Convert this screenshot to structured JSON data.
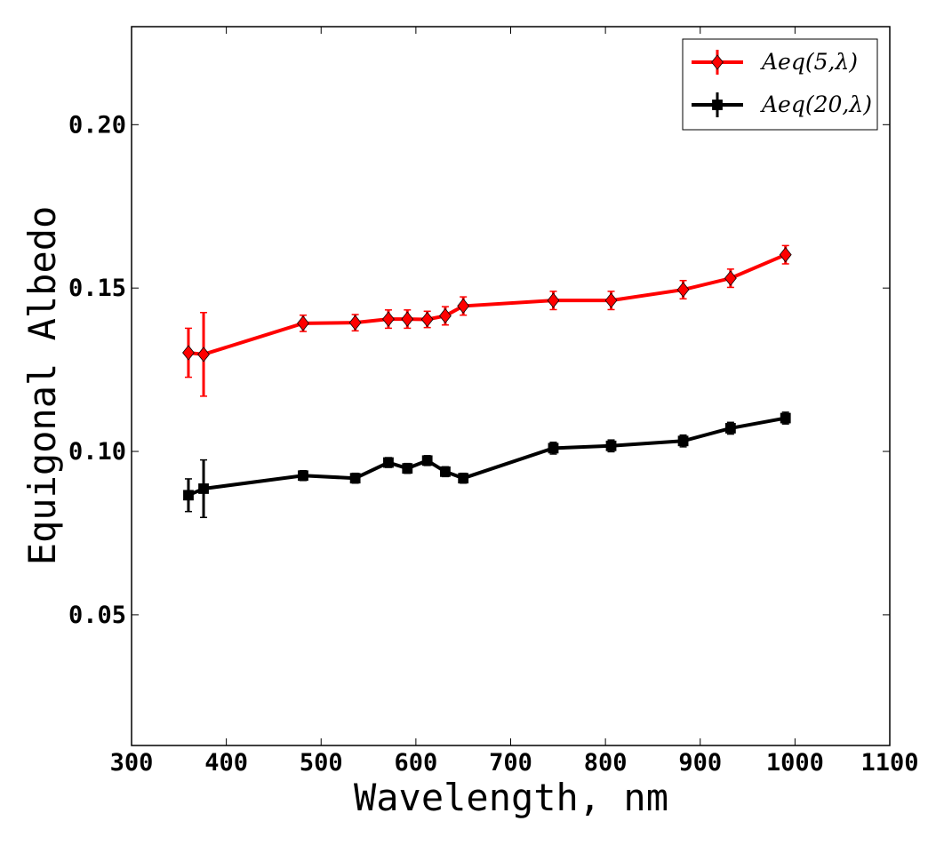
{
  "chart_data": {
    "type": "line",
    "title": "",
    "xlabel": "Wavelength, nm",
    "ylabel": "Equigonal Albedo",
    "xlim": [
      300,
      1100
    ],
    "ylim": [
      0.01,
      0.23
    ],
    "xticks": [
      300,
      400,
      500,
      600,
      700,
      800,
      900,
      1000,
      1100
    ],
    "xtick_labels": [
      "300",
      "400",
      "500",
      "600",
      "700",
      "800",
      "900",
      "1000",
      "1100"
    ],
    "yticks": [
      0.05,
      0.1,
      0.15,
      0.2
    ],
    "ytick_labels": [
      "0.05",
      "0.10",
      "0.15",
      "0.20"
    ],
    "grid": false,
    "legend_position": "top-right",
    "series": [
      {
        "name": "Aeq(5,λ)",
        "color": "#ff0000",
        "marker": "diamond",
        "x": [
          360,
          376,
          481,
          536,
          571,
          591,
          612,
          631,
          650,
          745,
          806,
          882,
          932,
          990
        ],
        "y": [
          0.1302,
          0.1297,
          0.1392,
          0.1394,
          0.1405,
          0.1405,
          0.1404,
          0.1415,
          0.1445,
          0.1462,
          0.1462,
          0.1495,
          0.153,
          0.1602
        ],
        "yerr": [
          0.0075,
          0.0128,
          0.0025,
          0.0025,
          0.0028,
          0.0028,
          0.0025,
          0.0028,
          0.0028,
          0.0028,
          0.0028,
          0.0028,
          0.0028,
          0.0028
        ]
      },
      {
        "name": "Aeq(20,λ)",
        "color": "#000000",
        "marker": "square",
        "x": [
          360,
          376,
          481,
          536,
          571,
          591,
          612,
          631,
          650,
          745,
          806,
          882,
          932,
          990
        ],
        "y": [
          0.0866,
          0.0886,
          0.0926,
          0.0918,
          0.0966,
          0.0948,
          0.0972,
          0.0938,
          0.0918,
          0.101,
          0.1017,
          0.1032,
          0.1071,
          0.1102
        ],
        "yerr": [
          0.005,
          0.0088,
          0.0015,
          0.0015,
          0.0015,
          0.0015,
          0.0015,
          0.0015,
          0.0015,
          0.0018,
          0.0018,
          0.0018,
          0.0018,
          0.0018
        ]
      }
    ]
  }
}
